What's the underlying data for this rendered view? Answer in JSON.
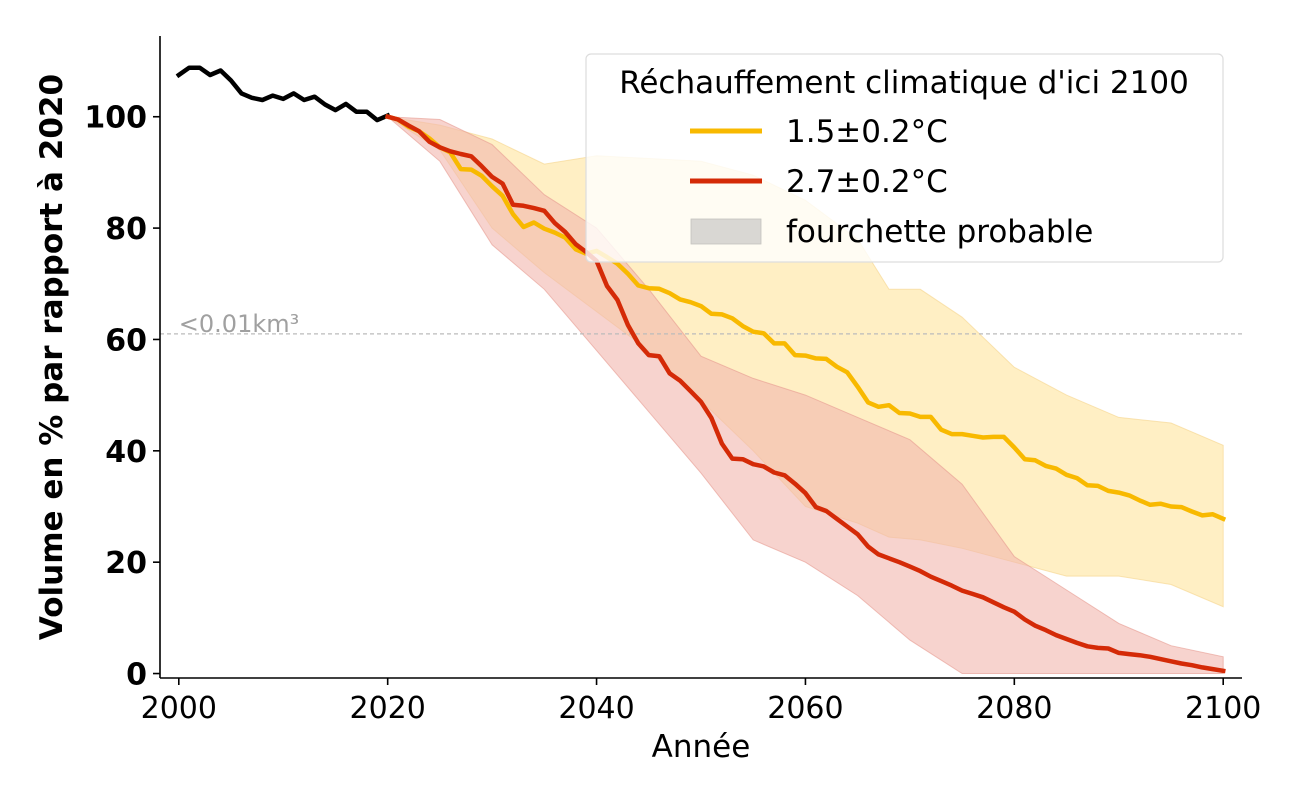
{
  "chart_data": {
    "type": "line",
    "xlabel": "Année",
    "ylabel": "Volume en % par rapport à 2020",
    "xlim": [
      1998.2,
      2101.8
    ],
    "ylim": [
      -0.8,
      114.5
    ],
    "xticks": [
      2000,
      2020,
      2040,
      2060,
      2080,
      2100
    ],
    "yticks": [
      0,
      20,
      40,
      60,
      80,
      100
    ],
    "grid": false,
    "legend": {
      "title": "Réchauffement climatique d'ici 2100",
      "placement": "top-right",
      "entries": [
        "1.5±0.2°C",
        "2.7±0.2°C",
        "fourchette probable"
      ]
    },
    "annotations": [
      {
        "text": "<0.01km³",
        "y": 61,
        "kind": "dashed-horizontal-line",
        "color": "#bbbbbb"
      }
    ],
    "colors": {
      "historical": "#000000",
      "low": "#f8b900",
      "low_band": "#ffe9b0",
      "high": "#d42a07",
      "high_band": "#f2b5ad",
      "legend_band": "#d9d7d3"
    },
    "series": [
      {
        "key": "historical",
        "x": [
          2000,
          2001,
          2002,
          2003,
          2004,
          2005,
          2006,
          2007,
          2008,
          2009,
          2010,
          2011,
          2012,
          2013,
          2014,
          2015,
          2016,
          2017,
          2018,
          2019,
          2020
        ],
        "values": [
          107.5,
          108.8,
          108.8,
          107.5,
          108.3,
          106.5,
          104.2,
          103.4,
          103,
          103.8,
          103.2,
          104.2,
          103,
          103.6,
          102.2,
          101.2,
          102.3,
          100.9,
          100.9,
          99.4,
          100.2
        ]
      },
      {
        "key": "low",
        "name": "1.5±0.2°C",
        "x": [
          2020,
          2021,
          2022,
          2023,
          2024,
          2025,
          2026,
          2027,
          2028,
          2029,
          2030,
          2031,
          2032,
          2033,
          2034,
          2035,
          2036,
          2037,
          2038,
          2039,
          2040,
          2041,
          2042,
          2043,
          2044,
          2045,
          2046,
          2047,
          2048,
          2049,
          2050,
          2051,
          2052,
          2053,
          2054,
          2055,
          2056,
          2057,
          2058,
          2059,
          2060,
          2061,
          2062,
          2063,
          2064,
          2065,
          2066,
          2067,
          2068,
          2069,
          2070,
          2071,
          2072,
          2073,
          2074,
          2075,
          2076,
          2077,
          2078,
          2079,
          2080,
          2081,
          2082,
          2083,
          2084,
          2085,
          2086,
          2087,
          2088,
          2089,
          2090,
          2091,
          2092,
          2093,
          2094,
          2095,
          2096,
          2097,
          2098,
          2099,
          2100
        ],
        "values": [
          100,
          99.5,
          98.2,
          97.4,
          96.1,
          94.5,
          93.6,
          90.6,
          90.5,
          89.4,
          87.5,
          85.8,
          82.5,
          80.2,
          81,
          79.9,
          79.2,
          78.3,
          76.2,
          75.4,
          75.9,
          74.8,
          73.6,
          71.8,
          69.7,
          69.2,
          69.1,
          68.3,
          67.2,
          66.7,
          66,
          64.6,
          64.5,
          63.8,
          62.4,
          61.4,
          61.1,
          59.3,
          59.3,
          57.2,
          57.1,
          56.6,
          56.5,
          55.1,
          54.1,
          51.5,
          48.7,
          47.9,
          48.2,
          46.8,
          46.7,
          46.1,
          46.1,
          43.8,
          43,
          43,
          42.7,
          42.4,
          42.5,
          42.5,
          40.6,
          38.5,
          38.3,
          37.3,
          36.8,
          35.7,
          35.1,
          33.8,
          33.7,
          32.8,
          32.5,
          32,
          31.1,
          30.3,
          30.5,
          30,
          29.9,
          29.1,
          28.4,
          28.6,
          27.8
        ]
      },
      {
        "key": "high",
        "name": "2.7±0.2°C",
        "x": [
          2020,
          2021,
          2022,
          2023,
          2024,
          2025,
          2026,
          2027,
          2028,
          2029,
          2030,
          2031,
          2032,
          2033,
          2034,
          2035,
          2036,
          2037,
          2038,
          2039,
          2040,
          2041,
          2042,
          2043,
          2044,
          2045,
          2046,
          2047,
          2048,
          2049,
          2050,
          2051,
          2052,
          2053,
          2054,
          2055,
          2056,
          2057,
          2058,
          2059,
          2060,
          2061,
          2062,
          2063,
          2064,
          2065,
          2066,
          2067,
          2068,
          2069,
          2070,
          2071,
          2072,
          2073,
          2074,
          2075,
          2076,
          2077,
          2078,
          2079,
          2080,
          2081,
          2082,
          2083,
          2084,
          2085,
          2086,
          2087,
          2088,
          2089,
          2090,
          2091,
          2092,
          2093,
          2094,
          2095,
          2096,
          2097,
          2098,
          2099,
          2100
        ],
        "values": [
          100,
          99.5,
          98.4,
          97.4,
          95.5,
          94.5,
          93.8,
          93.3,
          92.9,
          91.1,
          89.2,
          88,
          84.2,
          84,
          83.6,
          83.1,
          80.9,
          79.3,
          77.1,
          75.7,
          74.1,
          69.6,
          67.1,
          62.6,
          59.3,
          57.2,
          57,
          53.9,
          52.6,
          50.7,
          48.8,
          45.9,
          41.3,
          38.6,
          38.5,
          37.6,
          37.2,
          36.1,
          35.6,
          34.1,
          32.4,
          29.9,
          29.2,
          27.8,
          26.4,
          25,
          22.8,
          21.4,
          20.7,
          20,
          19.2,
          18.4,
          17.4,
          16.6,
          15.8,
          14.9,
          14.3,
          13.7,
          12.8,
          11.9,
          11.1,
          9.7,
          8.6,
          7.8,
          6.9,
          6.2,
          5.5,
          4.9,
          4.6,
          4.5,
          3.7,
          3.5,
          3.3,
          3,
          2.6,
          2.2,
          1.8,
          1.5,
          1.1,
          0.8,
          0.5
        ]
      },
      {
        "key": "low_band",
        "name": "fourchette probable",
        "x": [
          2020,
          2025,
          2030,
          2035,
          2040,
          2045,
          2050,
          2055,
          2060,
          2065,
          2068,
          2071,
          2075,
          2080,
          2085,
          2090,
          2095,
          2100
        ],
        "upper": [
          100,
          98.5,
          96,
          91.5,
          93,
          92.5,
          92,
          89.5,
          85,
          78,
          69,
          69,
          64,
          55,
          50,
          46,
          45,
          41
        ],
        "lower": [
          100,
          94,
          80,
          72,
          65,
          58,
          49,
          40,
          30,
          27,
          24.5,
          24,
          22.5,
          20,
          17.5,
          17.5,
          16,
          12
        ]
      },
      {
        "key": "high_band",
        "name": "fourchette probable",
        "x": [
          2020,
          2025,
          2030,
          2035,
          2040,
          2045,
          2050,
          2055,
          2060,
          2065,
          2070,
          2075,
          2080,
          2085,
          2090,
          2095,
          2100
        ],
        "upper": [
          100,
          99.5,
          95,
          86,
          80,
          69,
          57,
          53,
          50,
          46,
          42,
          34,
          21,
          15,
          9,
          5,
          3
        ],
        "lower": [
          100,
          92,
          77,
          69,
          58,
          47,
          36,
          24,
          20,
          14,
          6,
          0,
          0,
          0,
          0,
          0,
          0
        ]
      }
    ]
  }
}
